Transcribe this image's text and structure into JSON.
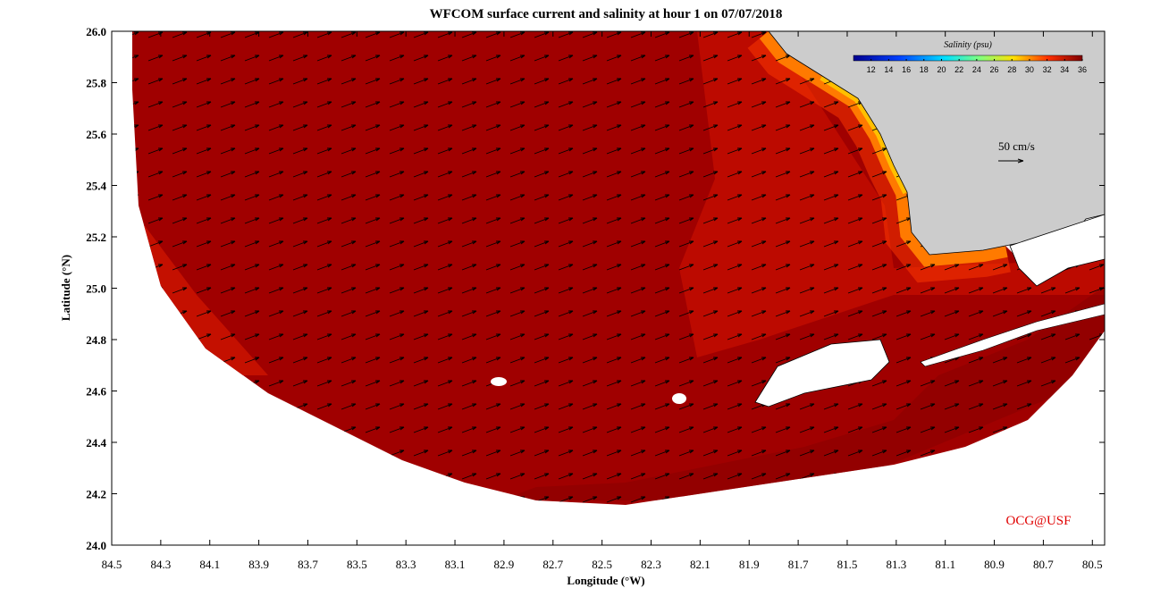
{
  "map": {
    "title": "WFCOM surface current and salinity at hour 1 on 07/07/2018",
    "x_label": "Longitude (°W)",
    "y_label": "Latitude (°N)",
    "xlim": [
      84.5,
      80.45
    ],
    "xticks": [
      84.5,
      84.3,
      84.1,
      83.9,
      83.7,
      83.5,
      83.3,
      83.1,
      82.9,
      82.7,
      82.5,
      82.3,
      82.1,
      81.9,
      81.7,
      81.5,
      81.3,
      81.1,
      80.9,
      80.7,
      80.5
    ],
    "ylim": [
      24,
      26
    ],
    "yticks": [
      {
        "value": 24,
        "label": "24.0"
      },
      24.2,
      24.4,
      24.6,
      24.8,
      {
        "value": 25,
        "label": "25.0"
      },
      25.2,
      25.4,
      25.6,
      25.8,
      {
        "value": 26,
        "label": "26.0"
      }
    ],
    "colorbar": {
      "title": "Salinity (psu)",
      "lim": [
        10,
        36
      ],
      "ticks": [
        12,
        14,
        16,
        18,
        20,
        22,
        24,
        26,
        28,
        30,
        32,
        34,
        36
      ]
    },
    "annotations": {
      "scale_label": "50 cm/s",
      "credit": "OCG@USF"
    }
  }
}
